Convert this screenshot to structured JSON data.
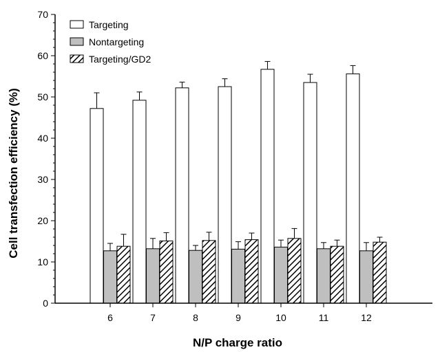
{
  "chart_data": {
    "type": "bar",
    "xlabel": "N/P charge ratio",
    "ylabel": "Cell transfection efficiency (%)",
    "ylim": [
      0,
      70
    ],
    "yticks": [
      0,
      10,
      20,
      30,
      40,
      50,
      60,
      70
    ],
    "categories": [
      "6",
      "7",
      "8",
      "9",
      "10",
      "11",
      "12"
    ],
    "series": [
      {
        "name": "Targeting",
        "fill": "white",
        "values": [
          47.2,
          49.2,
          52.2,
          52.5,
          56.7,
          53.5,
          55.6
        ],
        "errors": [
          3.8,
          2.0,
          1.4,
          1.9,
          1.9,
          2.0,
          2.0
        ]
      },
      {
        "name": "Nontargeting",
        "fill": "gray",
        "values": [
          12.7,
          13.2,
          12.8,
          13.1,
          13.6,
          13.2,
          12.7
        ],
        "errors": [
          1.8,
          2.5,
          1.2,
          1.8,
          1.7,
          1.5,
          2.0
        ]
      },
      {
        "name": "Targeting/GD2",
        "fill": "hatched",
        "values": [
          13.8,
          15.1,
          15.2,
          15.4,
          15.7,
          13.8,
          14.8
        ],
        "errors": [
          2.9,
          2.0,
          2.0,
          1.6,
          2.4,
          1.5,
          1.2
        ]
      }
    ],
    "legend_position": "top-left",
    "colors": {
      "gray_fill": "#bfbfbf",
      "stroke": "#000000",
      "hatch": "#000000"
    }
  }
}
